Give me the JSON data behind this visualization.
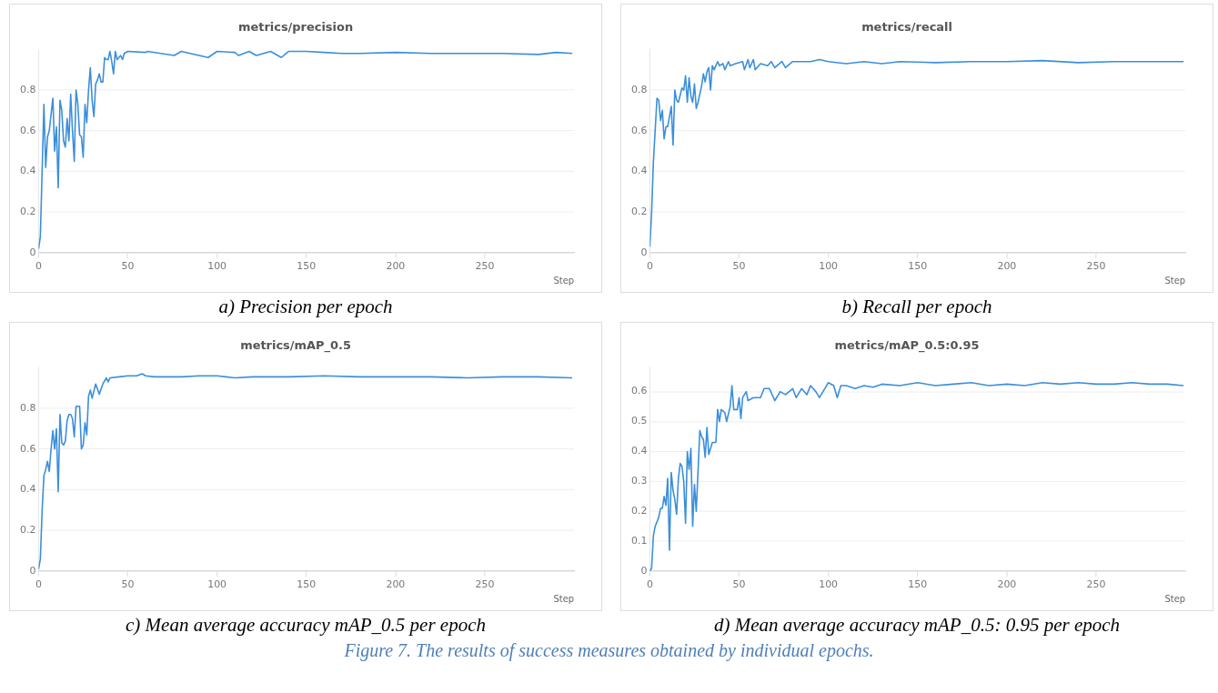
{
  "chart_data": [
    {
      "type": "line",
      "title": "metrics/precision",
      "xlabel": "Step",
      "xlim": [
        0,
        300
      ],
      "xticks": [
        0,
        50,
        100,
        150,
        200,
        250
      ],
      "ylim": [
        0,
        1
      ],
      "yticks": [
        0,
        0.2,
        0.4,
        0.6,
        0.8
      ],
      "grid": "y",
      "annotations": [
        "a) Precision per epoch"
      ],
      "series": [
        {
          "color": "#3a8fdc",
          "x": [
            0,
            1,
            3,
            4,
            5,
            6,
            8,
            9,
            10,
            11,
            12,
            13,
            14,
            15,
            16,
            17,
            18,
            19,
            20,
            21,
            22,
            23,
            24,
            25,
            26,
            27,
            28,
            29,
            30,
            31,
            32,
            33,
            34,
            35,
            36,
            37,
            38,
            39,
            40,
            41,
            42,
            43,
            44,
            45,
            46,
            47,
            48,
            50,
            60,
            61,
            76,
            80,
            95,
            100,
            110,
            112,
            118,
            122,
            130,
            136,
            140,
            150,
            160,
            170,
            180,
            200,
            220,
            240,
            260,
            280,
            290,
            299
          ],
          "values": [
            0.02,
            0.08,
            0.73,
            0.42,
            0.57,
            0.6,
            0.76,
            0.5,
            0.62,
            0.32,
            0.75,
            0.7,
            0.55,
            0.52,
            0.66,
            0.55,
            0.78,
            0.6,
            0.45,
            0.8,
            0.73,
            0.58,
            0.57,
            0.47,
            0.73,
            0.64,
            0.8,
            0.91,
            0.75,
            0.67,
            0.83,
            0.85,
            0.88,
            0.84,
            0.84,
            0.96,
            0.95,
            0.95,
            0.99,
            0.94,
            0.88,
            0.99,
            0.95,
            0.96,
            0.97,
            0.95,
            0.98,
            0.99,
            0.985,
            0.99,
            0.97,
            0.99,
            0.96,
            0.99,
            0.985,
            0.97,
            0.99,
            0.97,
            0.99,
            0.96,
            0.99,
            0.99,
            0.985,
            0.98,
            0.98,
            0.985,
            0.98,
            0.98,
            0.98,
            0.975,
            0.985,
            0.98
          ]
        }
      ]
    },
    {
      "type": "line",
      "title": "metrics/recall",
      "xlabel": "Step",
      "xlim": [
        0,
        300
      ],
      "xticks": [
        0,
        50,
        100,
        150,
        200,
        250
      ],
      "ylim": [
        0,
        1
      ],
      "yticks": [
        0,
        0.2,
        0.4,
        0.6,
        0.8
      ],
      "grid": "y",
      "annotations": [
        "b) Recall per epoch"
      ],
      "series": [
        {
          "color": "#3a8fdc",
          "x": [
            0,
            1,
            2,
            4,
            5,
            6,
            7,
            8,
            9,
            10,
            12,
            13,
            14,
            15,
            16,
            18,
            19,
            20,
            21,
            22,
            23,
            24,
            25,
            26,
            27,
            29,
            30,
            31,
            32,
            33,
            34,
            35,
            36,
            38,
            39,
            41,
            42,
            44,
            45,
            48,
            52,
            53,
            55,
            56,
            58,
            59,
            62,
            66,
            68,
            70,
            74,
            76,
            80,
            90,
            95,
            100,
            110,
            120,
            130,
            140,
            160,
            180,
            200,
            220,
            240,
            260,
            280,
            299
          ],
          "values": [
            0.03,
            0.2,
            0.45,
            0.76,
            0.75,
            0.65,
            0.7,
            0.56,
            0.62,
            0.62,
            0.72,
            0.53,
            0.8,
            0.75,
            0.74,
            0.81,
            0.8,
            0.87,
            0.74,
            0.86,
            0.77,
            0.74,
            0.83,
            0.71,
            0.74,
            0.82,
            0.88,
            0.84,
            0.89,
            0.91,
            0.8,
            0.92,
            0.9,
            0.94,
            0.92,
            0.93,
            0.9,
            0.94,
            0.92,
            0.93,
            0.94,
            0.9,
            0.95,
            0.91,
            0.95,
            0.9,
            0.93,
            0.92,
            0.94,
            0.91,
            0.94,
            0.91,
            0.94,
            0.94,
            0.95,
            0.94,
            0.93,
            0.94,
            0.93,
            0.94,
            0.935,
            0.94,
            0.94,
            0.945,
            0.935,
            0.94,
            0.94,
            0.94
          ]
        }
      ]
    },
    {
      "type": "line",
      "title": "metrics/mAP_0.5",
      "xlabel": "Step",
      "xlim": [
        0,
        300
      ],
      "xticks": [
        0,
        50,
        100,
        150,
        200,
        250
      ],
      "ylim": [
        0,
        1
      ],
      "yticks": [
        0,
        0.2,
        0.4,
        0.6,
        0.8
      ],
      "grid": "y",
      "annotations": [
        "c) Mean average accuracy mAP_0.5 per epoch"
      ],
      "series": [
        {
          "color": "#3a8fdc",
          "x": [
            0,
            1,
            2,
            3,
            4,
            5,
            6,
            7,
            8,
            9,
            10,
            11,
            12,
            13,
            14,
            15,
            16,
            17,
            18,
            19,
            20,
            21,
            23,
            24,
            25,
            26,
            27,
            28,
            29,
            30,
            32,
            34,
            36,
            38,
            39,
            40,
            45,
            50,
            55,
            58,
            60,
            65,
            70,
            80,
            90,
            100,
            105,
            110,
            120,
            140,
            160,
            180,
            200,
            220,
            240,
            260,
            280,
            299
          ],
          "values": [
            0.01,
            0.06,
            0.3,
            0.47,
            0.5,
            0.54,
            0.49,
            0.6,
            0.69,
            0.6,
            0.7,
            0.39,
            0.77,
            0.63,
            0.62,
            0.64,
            0.74,
            0.77,
            0.77,
            0.75,
            0.66,
            0.81,
            0.81,
            0.6,
            0.62,
            0.73,
            0.67,
            0.86,
            0.89,
            0.85,
            0.92,
            0.87,
            0.92,
            0.95,
            0.93,
            0.95,
            0.955,
            0.96,
            0.96,
            0.97,
            0.96,
            0.955,
            0.955,
            0.955,
            0.96,
            0.96,
            0.955,
            0.95,
            0.955,
            0.955,
            0.96,
            0.955,
            0.955,
            0.955,
            0.95,
            0.955,
            0.955,
            0.95
          ]
        }
      ]
    },
    {
      "type": "line",
      "title": "metrics/mAP_0.5:0.95",
      "xlabel": "Step",
      "xlim": [
        0,
        300
      ],
      "xticks": [
        0,
        50,
        100,
        150,
        200,
        250
      ],
      "ylim": [
        0,
        0.68
      ],
      "yticks": [
        0,
        0.1,
        0.2,
        0.3,
        0.4,
        0.5,
        0.6
      ],
      "grid": "y",
      "annotations": [
        "d) Mean average accuracy mAP_0.5: 0.95 per epoch",
        "Figure 7. The results of success measures obtained by individual epochs."
      ],
      "series": [
        {
          "color": "#3a8fdc",
          "x": [
            0,
            1,
            2,
            3,
            5,
            6,
            7,
            8,
            9,
            10,
            11,
            12,
            13,
            14,
            15,
            16,
            17,
            18,
            19,
            20,
            21,
            22,
            23,
            24,
            25,
            26,
            28,
            29,
            30,
            31,
            32,
            33,
            35,
            37,
            38,
            39,
            40,
            42,
            43,
            45,
            46,
            47,
            49,
            50,
            51,
            52,
            54,
            55,
            58,
            62,
            64,
            67,
            70,
            73,
            76,
            80,
            82,
            85,
            88,
            90,
            93,
            95,
            98,
            100,
            103,
            105,
            107,
            110,
            115,
            120,
            125,
            130,
            140,
            150,
            160,
            170,
            180,
            190,
            200,
            210,
            220,
            230,
            240,
            250,
            260,
            270,
            280,
            290,
            299
          ],
          "values": [
            0.0,
            0.01,
            0.12,
            0.15,
            0.18,
            0.21,
            0.21,
            0.25,
            0.22,
            0.31,
            0.07,
            0.33,
            0.27,
            0.24,
            0.19,
            0.31,
            0.36,
            0.35,
            0.3,
            0.16,
            0.4,
            0.34,
            0.41,
            0.15,
            0.29,
            0.2,
            0.47,
            0.45,
            0.44,
            0.38,
            0.48,
            0.39,
            0.43,
            0.43,
            0.54,
            0.5,
            0.54,
            0.53,
            0.5,
            0.55,
            0.62,
            0.54,
            0.54,
            0.58,
            0.51,
            0.58,
            0.6,
            0.57,
            0.58,
            0.58,
            0.61,
            0.61,
            0.57,
            0.6,
            0.59,
            0.61,
            0.58,
            0.61,
            0.59,
            0.62,
            0.6,
            0.58,
            0.61,
            0.63,
            0.62,
            0.58,
            0.62,
            0.62,
            0.61,
            0.62,
            0.615,
            0.625,
            0.62,
            0.63,
            0.62,
            0.625,
            0.63,
            0.62,
            0.625,
            0.62,
            0.63,
            0.625,
            0.63,
            0.625,
            0.625,
            0.63,
            0.625,
            0.625,
            0.62
          ]
        }
      ]
    }
  ]
}
